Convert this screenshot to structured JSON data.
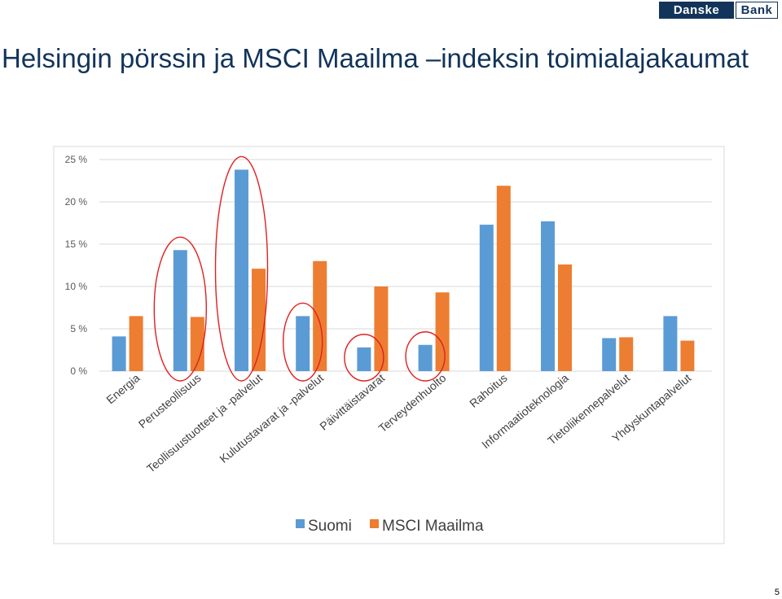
{
  "logo": {
    "part1": "Danske",
    "part2": "Bank"
  },
  "title": "Helsingin pörssin ja MSCI Maailma –indeksin toimialajakaumat",
  "page_number": "5",
  "colors": {
    "suomi": "#5b9bd5",
    "msci": "#ed7d31",
    "highlight": "#e02020",
    "title": "#12345a"
  },
  "chart_data": {
    "type": "bar",
    "title": "",
    "xlabel": "",
    "ylabel": "",
    "ylim": [
      0,
      25
    ],
    "yticks": [
      0,
      5,
      10,
      15,
      20,
      25
    ],
    "ytick_labels": [
      "0 %",
      "5 %",
      "10 %",
      "15 %",
      "20 %",
      "25 %"
    ],
    "grid": true,
    "legend_position": "bottom",
    "categories": [
      "Energia",
      "Perusteollisuus",
      "Teollisuustuotteet ja -palvelut",
      "Kulutustavarat ja -palvelut",
      "Päivittäistavarat",
      "Terveydenhuolto",
      "Rahoitus",
      "Informaatioteknologia",
      "Tietoliikennepalvelut",
      "Yhdyskuntapalvelut"
    ],
    "series": [
      {
        "name": "Suomi",
        "values": [
          4.1,
          14.3,
          23.8,
          6.5,
          2.8,
          3.1,
          17.3,
          17.7,
          3.9,
          6.5
        ]
      },
      {
        "name": "MSCI Maailma",
        "values": [
          6.5,
          6.4,
          12.1,
          13.0,
          10.0,
          9.3,
          21.9,
          12.6,
          4.0,
          3.6
        ]
      }
    ],
    "highlighted_categories": [
      1,
      2,
      3,
      4,
      5
    ]
  }
}
